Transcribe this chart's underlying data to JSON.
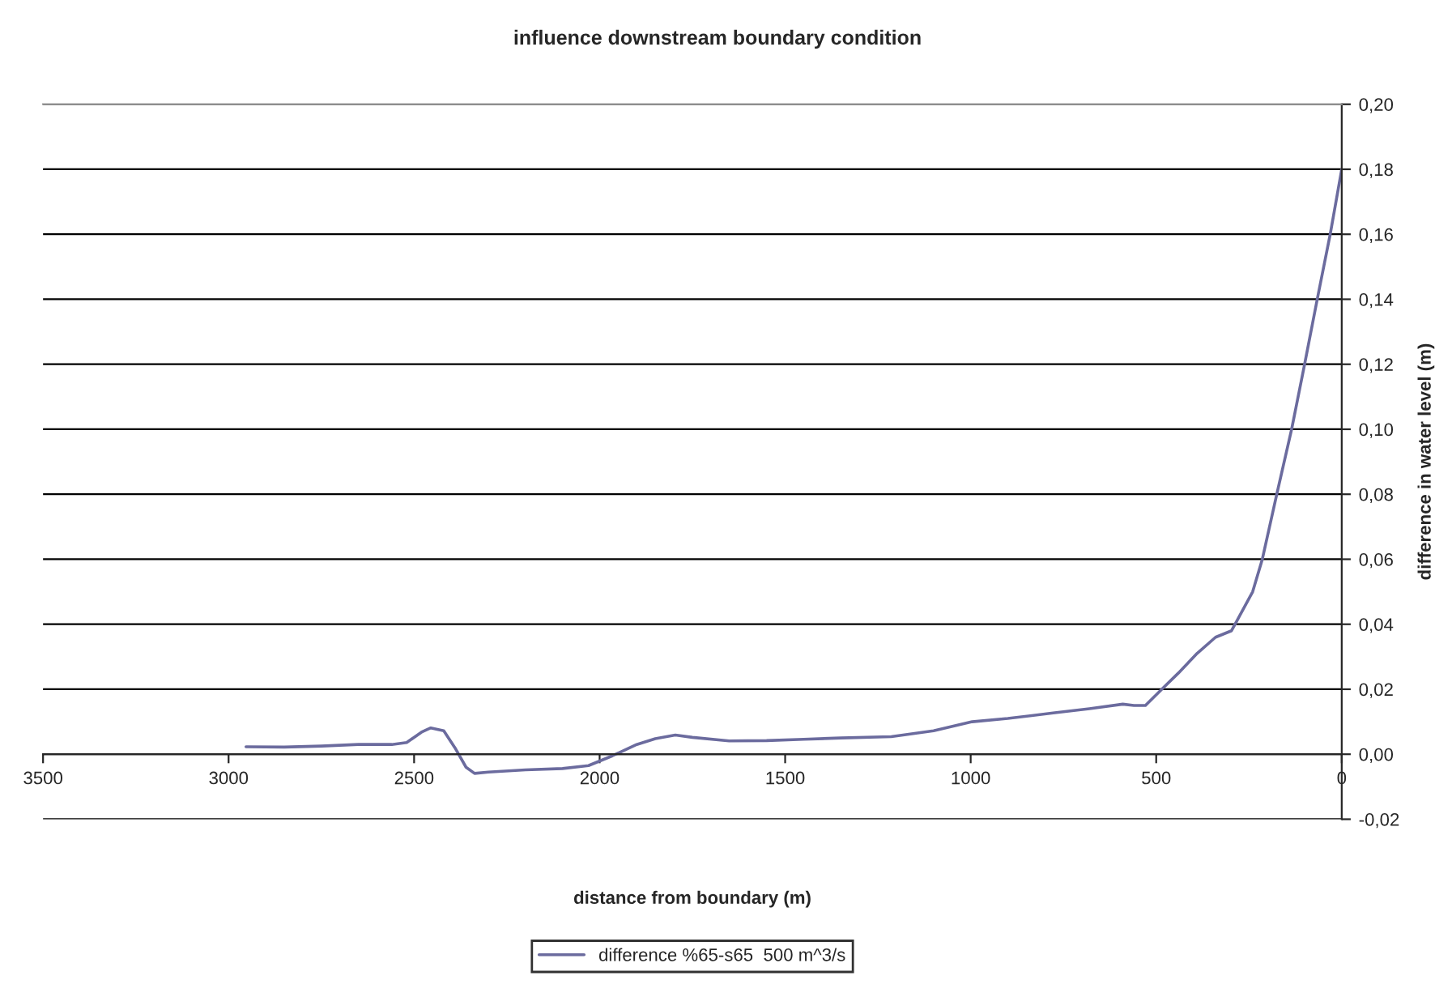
{
  "chart_data": {
    "type": "line",
    "title": "influence downstream boundary condition",
    "xlabel": "distance from boundary (m)",
    "ylabel": "difference in water level (m)",
    "series": [
      {
        "name": "difference %65-s65  500 m^3/s",
        "color": "#6b6b9e",
        "x": [
          2953,
          2850,
          2750,
          2650,
          2560,
          2520,
          2480,
          2455,
          2420,
          2390,
          2360,
          2337,
          2300,
          2200,
          2100,
          2030,
          1966,
          1900,
          1850,
          1796,
          1750,
          1651,
          1550,
          1450,
          1350,
          1214,
          1100,
          996,
          900,
          778,
          680,
          590,
          560,
          529,
          485,
          440,
          390,
          340,
          297,
          240,
          214,
          175,
          135,
          100,
          66,
          31,
          0
        ],
        "values": [
          0.0023,
          0.0022,
          0.0025,
          0.003,
          0.003,
          0.0036,
          0.0068,
          0.0081,
          0.0072,
          0.002,
          -0.004,
          -0.0059,
          -0.0055,
          -0.0048,
          -0.0044,
          -0.0035,
          -0.0005,
          0.003,
          0.0048,
          0.0059,
          0.0052,
          0.0041,
          0.0042,
          0.0046,
          0.005,
          0.0054,
          0.0072,
          0.01,
          0.011,
          0.0127,
          0.014,
          0.0154,
          0.015,
          0.015,
          0.02,
          0.025,
          0.031,
          0.036,
          0.038,
          0.05,
          0.06,
          0.08,
          0.1,
          0.12,
          0.14,
          0.16,
          0.18
        ]
      }
    ],
    "xlim": [
      3500,
      0
    ],
    "xticks": [
      3500,
      3000,
      2500,
      2000,
      1500,
      1000,
      500,
      0
    ],
    "ylim": [
      -0.02,
      0.2
    ],
    "yticks": [
      {
        "value": -0.02,
        "label": "-0,02"
      },
      {
        "value": 0,
        "label": "0,00"
      },
      {
        "value": 0.02,
        "label": "0,02"
      },
      {
        "value": 0.04,
        "label": "0,04"
      },
      {
        "value": 0.06,
        "label": "0,06"
      },
      {
        "value": 0.08,
        "label": "0,08"
      },
      {
        "value": 0.1,
        "label": "0,10"
      },
      {
        "value": 0.12,
        "label": "0,12"
      },
      {
        "value": 0.14,
        "label": "0,14"
      },
      {
        "value": 0.16,
        "label": "0,16"
      },
      {
        "value": 0.18,
        "label": "0,18"
      },
      {
        "value": 0.2,
        "label": "0,20"
      }
    ],
    "grid": "y",
    "legend": "bottom",
    "marker": "none",
    "line_style": "solid"
  }
}
